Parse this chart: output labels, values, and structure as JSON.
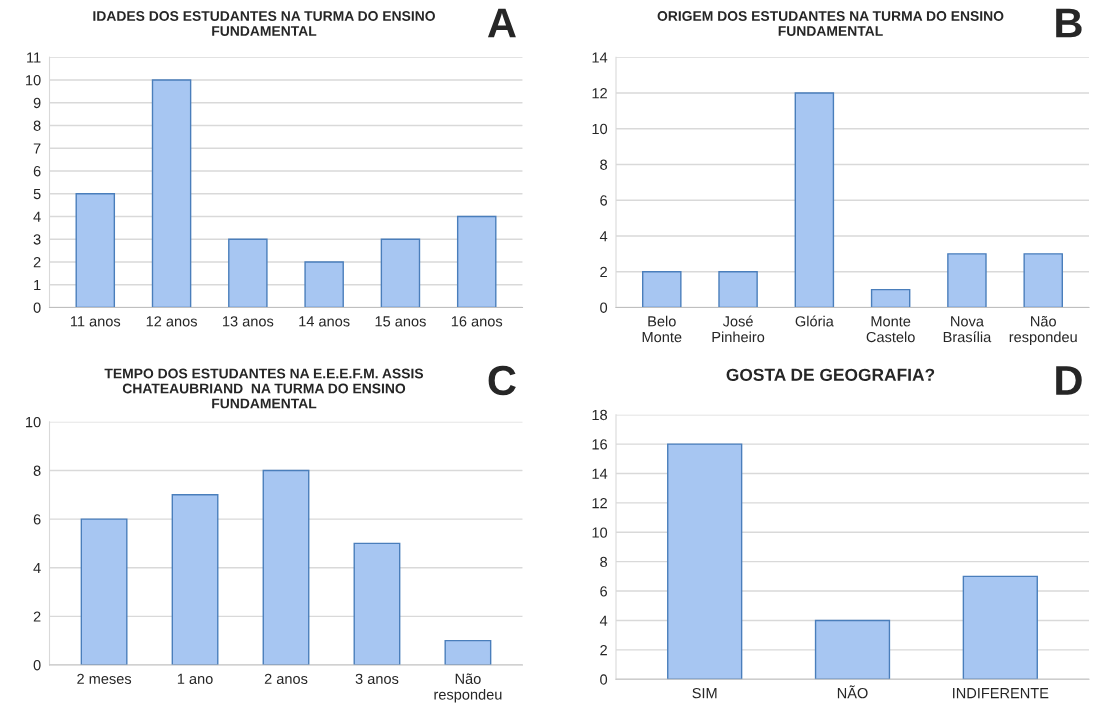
{
  "chart_data": [
    {
      "type": "bar",
      "title": "IDADES DOS ESTUDANTES NA TURMA DO ENSINO\nFUNDAMENTAL",
      "categories": [
        "11 anos",
        "12 anos",
        "13 anos",
        "14 anos",
        "15 anos",
        "16 anos"
      ],
      "values": [
        5,
        10,
        3,
        2,
        3,
        4
      ],
      "color": "#a7c6f2",
      "ylim": [
        0,
        11
      ],
      "yticks": [
        0,
        1,
        2,
        3,
        4,
        5,
        6,
        7,
        8,
        9,
        10,
        11
      ],
      "grid": "y",
      "legend": false,
      "annotations": [
        "A"
      ]
    },
    {
      "type": "bar",
      "title": "ORIGEM DOS ESTUDANTES NA TURMA DO ENSINO\nFUNDAMENTAL",
      "categories": [
        "Belo\nMonte",
        "José\nPinheiro",
        "Glória",
        "Monte\nCastelo",
        "Nova\nBrasília",
        "Não\nrespondeu"
      ],
      "values": [
        2,
        2,
        12,
        1,
        3,
        3
      ],
      "color": "#a7c6f2",
      "ylim": [
        0,
        14
      ],
      "yticks": [
        0,
        2,
        4,
        6,
        8,
        10,
        12,
        14
      ],
      "grid": "y",
      "legend": false,
      "annotations": [
        "B"
      ]
    },
    {
      "type": "bar",
      "title": "TEMPO DOS ESTUDANTES NA E.E.E.F.M. ASSIS\nCHATEAUBRIAND  NA TURMA DO ENSINO\nFUNDAMENTAL",
      "categories": [
        "2 meses",
        "1 ano",
        "2 anos",
        "3 anos",
        "Não\nrespondeu"
      ],
      "values": [
        6,
        7,
        8,
        5,
        1
      ],
      "color": "#a7c6f2",
      "ylim": [
        0,
        10
      ],
      "yticks": [
        0,
        2,
        4,
        6,
        8,
        10
      ],
      "grid": "y",
      "legend": false,
      "annotations": [
        "C"
      ]
    },
    {
      "type": "bar",
      "title": "GOSTA DE GEOGRAFIA?",
      "categories": [
        "SIM",
        "NÃO",
        "INDIFERENTE"
      ],
      "values": [
        16,
        4,
        7
      ],
      "color": "#a7c6f2",
      "ylim": [
        0,
        18
      ],
      "yticks": [
        0,
        2,
        4,
        6,
        8,
        10,
        12,
        14,
        16,
        18
      ],
      "grid": "y",
      "legend": false,
      "annotations": [
        "D"
      ]
    }
  ]
}
